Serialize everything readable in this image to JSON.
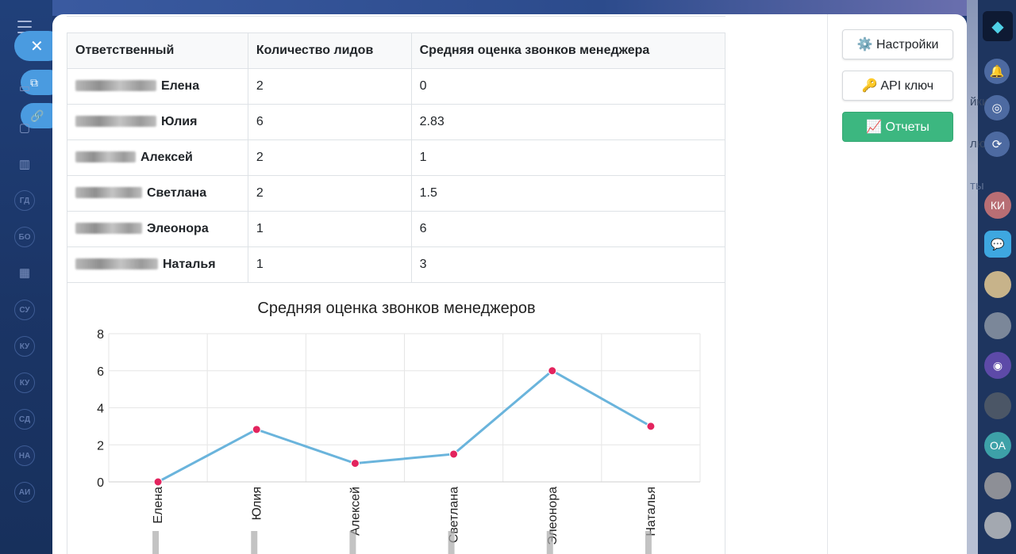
{
  "table": {
    "headers": [
      "Ответственный",
      "Количество лидов",
      "Средняя оценка звонков менеджера"
    ],
    "rows": [
      {
        "name": "Елена",
        "leads": "2",
        "score": "0"
      },
      {
        "name": "Юлия",
        "leads": "6",
        "score": "2.83"
      },
      {
        "name": "Алексей",
        "leads": "2",
        "score": "1"
      },
      {
        "name": "Светлана",
        "leads": "2",
        "score": "1.5"
      },
      {
        "name": "Элеонора",
        "leads": "1",
        "score": "6"
      },
      {
        "name": "Наталья",
        "leads": "1",
        "score": "3"
      }
    ]
  },
  "chart_data": {
    "type": "line",
    "title": "Средняя оценка звонков менеджеров",
    "categories": [
      "Елена",
      "Юлия",
      "Алексей",
      "Светлана",
      "Элеонора",
      "Наталья"
    ],
    "values": [
      0,
      2.83,
      1,
      1.5,
      6,
      3
    ],
    "yticks": [
      "0",
      "2",
      "4",
      "6",
      "8"
    ],
    "ylim": [
      0,
      8
    ],
    "grid": true,
    "legend": "none",
    "line_color": "#6ab4dc",
    "point_color": "#e3245e"
  },
  "sidebar_buttons": {
    "settings": "⚙️ Настройки",
    "api_key": "🔑 API ключ",
    "reports": "📈 Отчеты"
  },
  "background": {
    "left_badges": [
      "ГД",
      "БО",
      "СУ",
      "КУ",
      "КУ",
      "СД",
      "НА",
      "АИ"
    ],
    "right_avatars": [
      "КИ",
      "ОА"
    ],
    "behind_texts": [
      "йки",
      "люч",
      "ты"
    ]
  },
  "colors": {
    "accent_blue": "#4a9be0",
    "reports_green": "#3cb780"
  }
}
